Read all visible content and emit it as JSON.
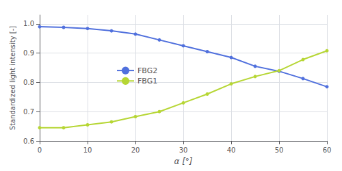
{
  "chart_data": {
    "type": "line",
    "xlabel": "α [°]",
    "ylabel": "Standardized light intensity [-]",
    "x": [
      0,
      5,
      10,
      15,
      20,
      25,
      30,
      35,
      40,
      45,
      50,
      55,
      60
    ],
    "series": [
      {
        "name": "FBG2",
        "values": [
          0.99,
          0.988,
          0.984,
          0.976,
          0.965,
          0.945,
          0.925,
          0.905,
          0.885,
          0.855,
          0.838,
          0.813,
          0.785
        ]
      },
      {
        "name": "FBG1",
        "values": [
          0.645,
          0.645,
          0.655,
          0.665,
          0.683,
          0.7,
          0.73,
          0.76,
          0.795,
          0.82,
          0.84,
          0.878,
          0.908
        ]
      }
    ],
    "xlim": [
      0,
      60
    ],
    "ylim": [
      0.6,
      1.03
    ],
    "xticks": [
      0,
      10,
      20,
      30,
      40,
      50,
      60
    ],
    "yticks": [
      0.6,
      0.7,
      0.8,
      0.9,
      {
        "value": 1.0,
        "label": "1.0"
      }
    ],
    "grid": true,
    "legend": "upper left",
    "marker": "circle"
  }
}
